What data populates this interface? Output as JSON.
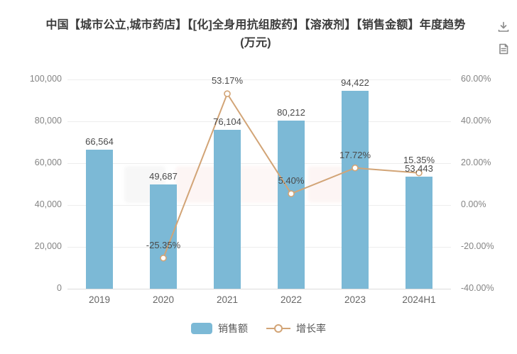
{
  "title": {
    "line1": "中国【城市公立,城市药店】【[化]全身用抗组胺药】【溶液剂】【销售金额】年度趋势",
    "line2": "(万元)"
  },
  "toolbar": {
    "icons": [
      {
        "name": "download-icon"
      },
      {
        "name": "report-document-icon"
      }
    ]
  },
  "legend": {
    "sales_label": "销售额",
    "growth_label": "增长率"
  },
  "colors": {
    "bar": "#7CB9D6",
    "line": "#D2A476",
    "axis_text": "#848484",
    "value_text": "#4a4a4a",
    "gridline": "#ededed"
  },
  "chart_data": {
    "type": "bar+line",
    "title": "中国【城市公立,城市药店】【[化]全身用抗组胺药】【溶液剂】【销售金额】年度趋势(万元)",
    "categories": [
      "2019",
      "2020",
      "2021",
      "2022",
      "2023",
      "2024H1"
    ],
    "series": [
      {
        "name": "销售额",
        "type": "bar",
        "axis": "left",
        "values": [
          66564,
          49687,
          76104,
          80212,
          94422,
          53443
        ],
        "labels": [
          "66,564",
          "49,687",
          "76,104",
          "80,212",
          "94,422",
          "53,443"
        ]
      },
      {
        "name": "增长率",
        "type": "line",
        "axis": "right",
        "values": [
          null,
          -25.35,
          53.17,
          5.4,
          17.72,
          15.35
        ],
        "labels": [
          null,
          "-25.35%",
          "53.17%",
          "5.40%",
          "17.72%",
          "15.35%"
        ]
      }
    ],
    "left_axis": {
      "min": 0,
      "max": 100000,
      "ticks": [
        {
          "value": 100000,
          "label": "100,000"
        },
        {
          "value": 80000,
          "label": "80,000"
        },
        {
          "value": 60000,
          "label": "60,000"
        },
        {
          "value": 40000,
          "label": "40,000"
        },
        {
          "value": 20000,
          "label": "20,000"
        },
        {
          "value": 0,
          "label": "0"
        }
      ]
    },
    "right_axis": {
      "min": -40,
      "max": 60,
      "ticks": [
        {
          "value": 60,
          "label": "60.00%"
        },
        {
          "value": 40,
          "label": "40.00%"
        },
        {
          "value": 20,
          "label": "20.00%"
        },
        {
          "value": 0,
          "label": "0.00%"
        },
        {
          "value": -20,
          "label": "-20.00%"
        },
        {
          "value": -40,
          "label": "-40.00%"
        }
      ]
    },
    "grid": true,
    "legend_position": "bottom"
  }
}
